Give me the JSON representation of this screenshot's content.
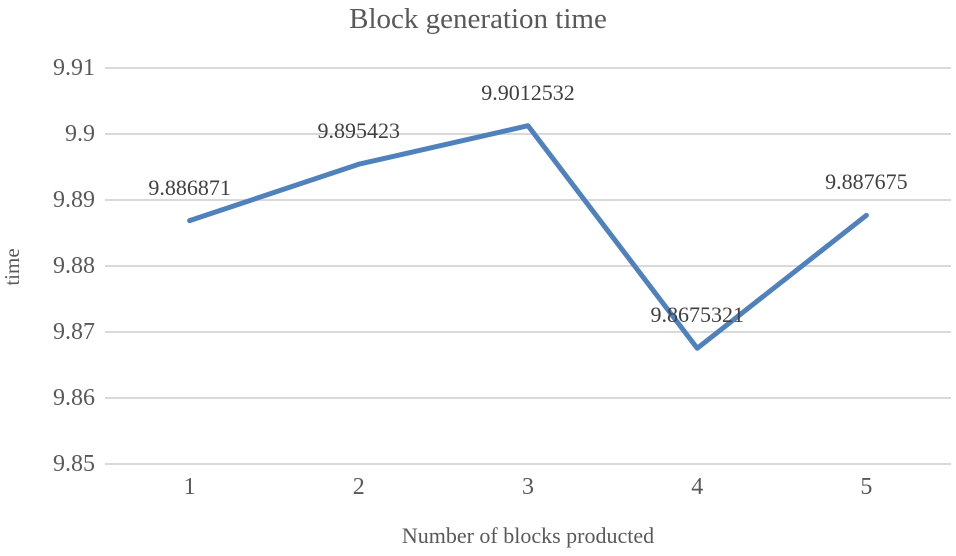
{
  "chart_data": {
    "type": "line",
    "title": "Block generation time",
    "xlabel": "Number of blocks producted",
    "ylabel": "time",
    "categories": [
      "1",
      "2",
      "3",
      "4",
      "5"
    ],
    "series": [
      {
        "name": "Block generation time",
        "values": [
          9.886871,
          9.895423,
          9.9012532,
          9.8675321,
          9.887675
        ],
        "point_labels": [
          "9.886871",
          "9.895423",
          "9.9012532",
          "9.8675321",
          "9.887675"
        ]
      }
    ],
    "ylim": [
      9.85,
      9.91
    ],
    "ytick_step": 0.01,
    "yticks": [
      {
        "value": 9.91,
        "label": "9.91"
      },
      {
        "value": 9.9,
        "label": "9.9"
      },
      {
        "value": 9.89,
        "label": "9.89"
      },
      {
        "value": 9.88,
        "label": "9.88"
      },
      {
        "value": 9.87,
        "label": "9.87"
      },
      {
        "value": 9.86,
        "label": "9.86"
      },
      {
        "value": 9.85,
        "label": "9.85"
      }
    ],
    "grid": true,
    "legend_position": "none",
    "data_labels_position": "above",
    "colors": {
      "line": "#4F81BD",
      "gridline": "#D9D9D9",
      "title_text": "#595959",
      "axis_title_text": "#595959",
      "tick_text": "#595959",
      "data_label_text": "#404040"
    }
  }
}
